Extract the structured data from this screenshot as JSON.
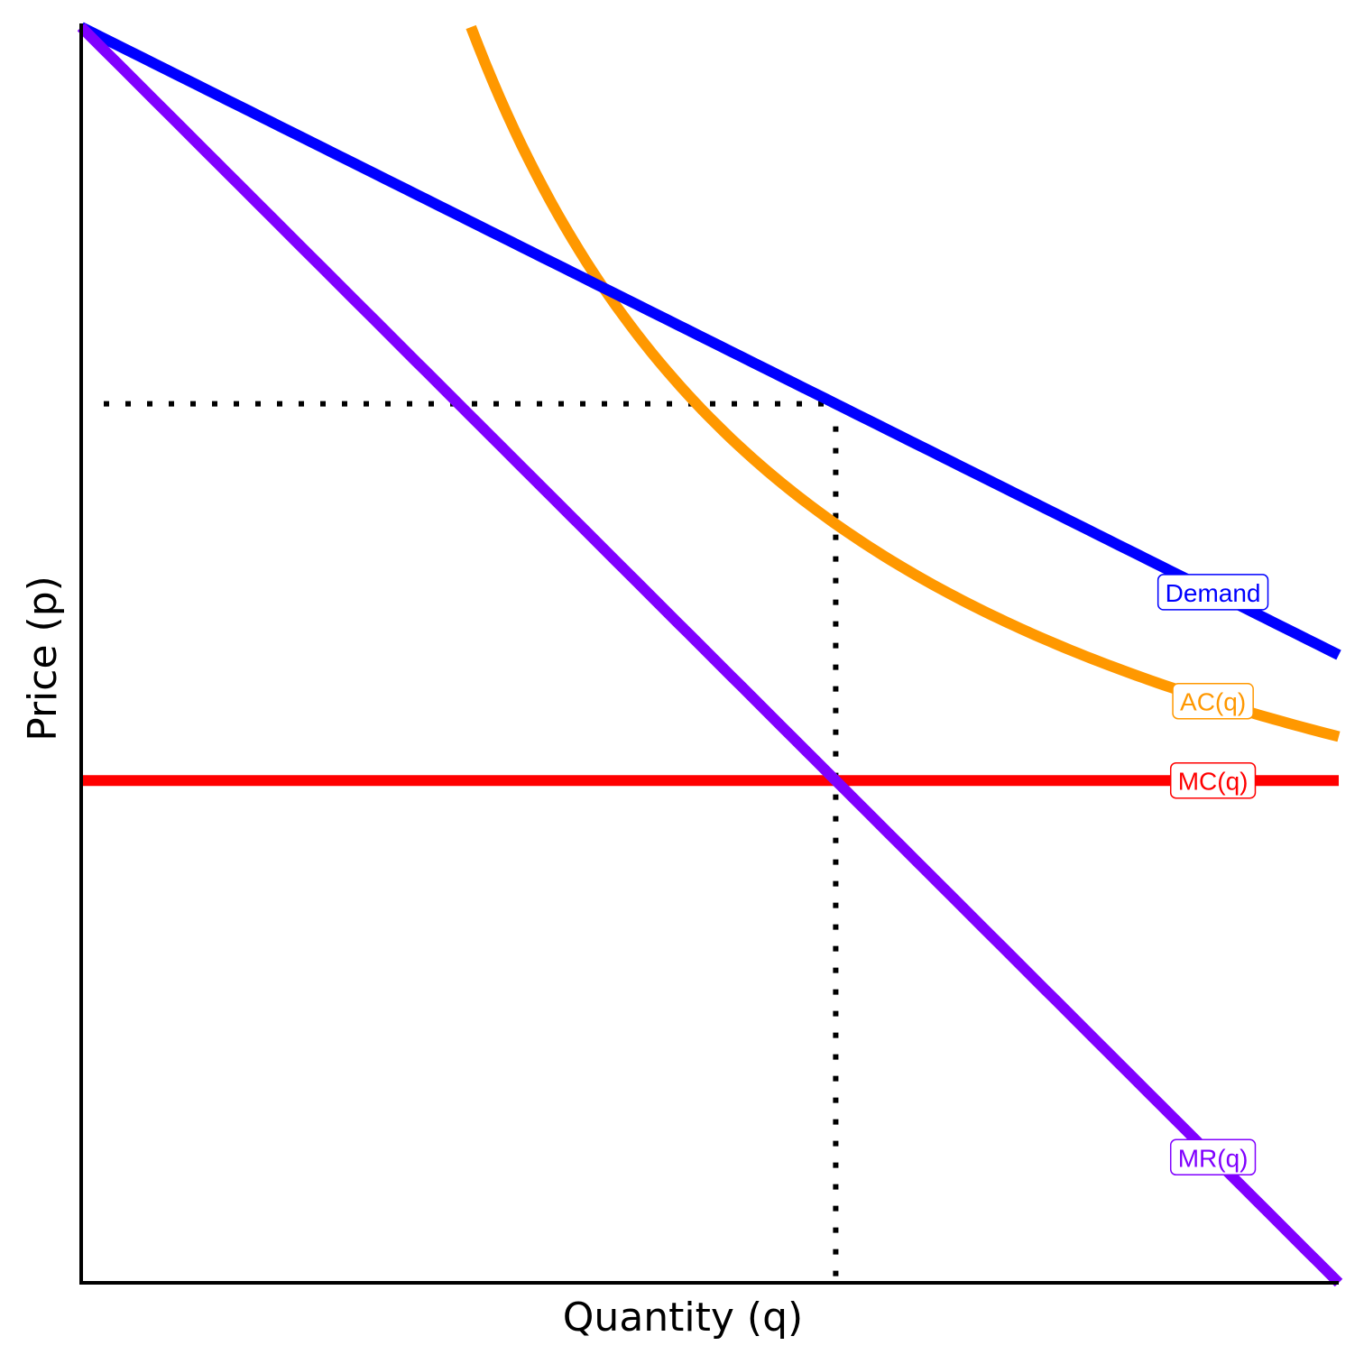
{
  "chart_data": {
    "type": "line",
    "title": "",
    "xlabel": "Quantity (q)",
    "ylabel": "Price (p)",
    "xlim": [
      0,
      10
    ],
    "ylim": [
      0,
      10
    ],
    "axis_ticks": false,
    "grid": false,
    "legend": "none",
    "series": [
      {
        "name": "AC(q)",
        "color": "#FF9800",
        "function": "reciprocal",
        "x": [
          3.1,
          3.5,
          4,
          4.5,
          5,
          5.5,
          6,
          6.5,
          7,
          7.5,
          8,
          8.5,
          9,
          9.5,
          10
        ],
        "y": [
          10,
          9.17,
          8.38,
          7.7,
          7.1,
          6.6,
          6.15,
          5.77,
          5.45,
          5.18,
          4.95,
          4.76,
          4.6,
          4.47,
          4.35
        ],
        "label_at_x": 9.0
      },
      {
        "name": "Demand",
        "color": "#0000FF",
        "function": "linear",
        "x": [
          0,
          10
        ],
        "y": [
          10,
          5
        ],
        "label_at_x": 9.0
      },
      {
        "name": "MC(q)",
        "color": "#FF0000",
        "function": "linear",
        "x": [
          0,
          10
        ],
        "y": [
          4,
          4
        ],
        "label_at_x": 9.0
      },
      {
        "name": "MR(q)",
        "color": "#8000FF",
        "function": "linear",
        "x": [
          0,
          10
        ],
        "y": [
          10,
          0
        ],
        "label_at_x": 9.0
      }
    ],
    "reference_lines": {
      "q": 6,
      "p": 7,
      "style": "dotted",
      "color": "#000000"
    }
  }
}
